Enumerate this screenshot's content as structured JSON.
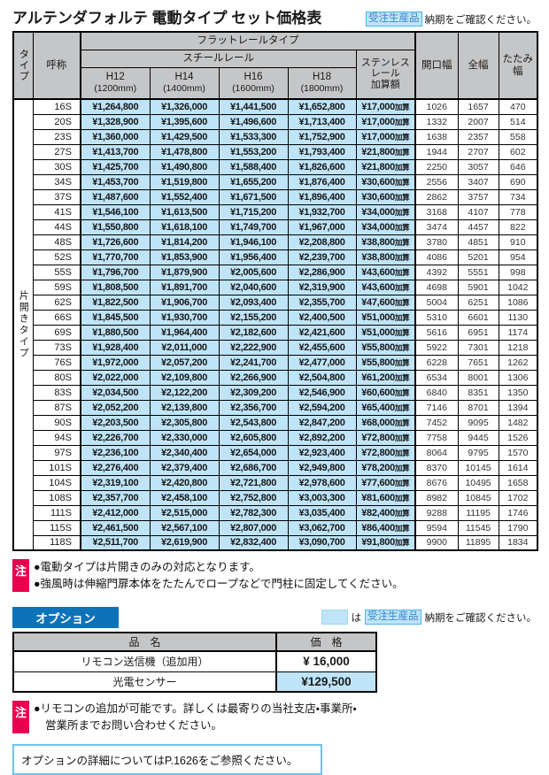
{
  "page": {
    "title": "アルテンダフォルテ 電動タイプ セット価格表",
    "order_badge": "受注生産品",
    "order_note": "納期をご確認ください。"
  },
  "price_table": {
    "headers": {
      "type": "タイプ",
      "name": "呼称",
      "flat_rail": "フラットレールタイプ",
      "steel_rail": "スチールレール",
      "h_cols": [
        {
          "label": "H12",
          "sub": "(1200mm)"
        },
        {
          "label": "H14",
          "sub": "(1400mm)"
        },
        {
          "label": "H16",
          "sub": "(1600mm)"
        },
        {
          "label": "H18",
          "sub": "(1800mm)"
        }
      ],
      "stainless_lines": [
        "ステンレス",
        "レール",
        "加算額"
      ],
      "opening_width": "開口幅",
      "total_width": "全幅",
      "folded_width": "たたみ幅"
    },
    "type_label": "片開きタイプ",
    "kasan_suffix": "加算",
    "rows": [
      [
        "16S",
        "¥1,264,800",
        "¥1,326,000",
        "¥1,441,500",
        "¥1,652,800",
        "¥17,000",
        "1026",
        "1657",
        "470"
      ],
      [
        "20S",
        "¥1,328,900",
        "¥1,395,600",
        "¥1,496,600",
        "¥1,713,400",
        "¥17,000",
        "1332",
        "2007",
        "514"
      ],
      [
        "23S",
        "¥1,360,000",
        "¥1,429,500",
        "¥1,533,300",
        "¥1,752,900",
        "¥17,000",
        "1638",
        "2357",
        "558"
      ],
      [
        "27S",
        "¥1,413,700",
        "¥1,478,800",
        "¥1,553,200",
        "¥1,793,400",
        "¥21,800",
        "1944",
        "2707",
        "602"
      ],
      [
        "30S",
        "¥1,425,700",
        "¥1,490,800",
        "¥1,588,400",
        "¥1,826,600",
        "¥21,800",
        "2250",
        "3057",
        "646"
      ],
      [
        "34S",
        "¥1,453,700",
        "¥1,519,800",
        "¥1,655,200",
        "¥1,876,400",
        "¥30,600",
        "2556",
        "3407",
        "690"
      ],
      [
        "37S",
        "¥1,487,600",
        "¥1,552,400",
        "¥1,671,500",
        "¥1,896,400",
        "¥30,600",
        "2862",
        "3757",
        "734"
      ],
      [
        "41S",
        "¥1,546,100",
        "¥1,613,500",
        "¥1,715,200",
        "¥1,932,700",
        "¥34,000",
        "3168",
        "4107",
        "778"
      ],
      [
        "44S",
        "¥1,550,800",
        "¥1,618,100",
        "¥1,749,700",
        "¥1,967,000",
        "¥34,000",
        "3474",
        "4457",
        "822"
      ],
      [
        "48S",
        "¥1,726,600",
        "¥1,814,200",
        "¥1,946,100",
        "¥2,208,800",
        "¥38,800",
        "3780",
        "4851",
        "910"
      ],
      [
        "52S",
        "¥1,770,700",
        "¥1,853,900",
        "¥1,956,400",
        "¥2,239,700",
        "¥38,800",
        "4086",
        "5201",
        "954"
      ],
      [
        "55S",
        "¥1,796,700",
        "¥1,879,900",
        "¥2,005,600",
        "¥2,286,900",
        "¥43,600",
        "4392",
        "5551",
        "998"
      ],
      [
        "59S",
        "¥1,808,500",
        "¥1,891,700",
        "¥2,040,600",
        "¥2,319,900",
        "¥43,600",
        "4698",
        "5901",
        "1042"
      ],
      [
        "62S",
        "¥1,822,500",
        "¥1,906,700",
        "¥2,093,400",
        "¥2,355,700",
        "¥47,600",
        "5004",
        "6251",
        "1086"
      ],
      [
        "66S",
        "¥1,845,500",
        "¥1,930,700",
        "¥2,155,200",
        "¥2,400,500",
        "¥51,000",
        "5310",
        "6601",
        "1130"
      ],
      [
        "69S",
        "¥1,880,500",
        "¥1,964,400",
        "¥2,182,600",
        "¥2,421,600",
        "¥51,000",
        "5616",
        "6951",
        "1174"
      ],
      [
        "73S",
        "¥1,928,400",
        "¥2,011,000",
        "¥2,222,900",
        "¥2,455,600",
        "¥55,800",
        "5922",
        "7301",
        "1218"
      ],
      [
        "76S",
        "¥1,972,000",
        "¥2,057,200",
        "¥2,241,700",
        "¥2,477,000",
        "¥55,800",
        "6228",
        "7651",
        "1262"
      ],
      [
        "80S",
        "¥2,022,000",
        "¥2,109,800",
        "¥2,266,900",
        "¥2,504,800",
        "¥61,200",
        "6534",
        "8001",
        "1306"
      ],
      [
        "83S",
        "¥2,034,500",
        "¥2,122,200",
        "¥2,309,200",
        "¥2,546,900",
        "¥60,600",
        "6840",
        "8351",
        "1350"
      ],
      [
        "87S",
        "¥2,052,200",
        "¥2,139,800",
        "¥2,356,700",
        "¥2,594,200",
        "¥65,400",
        "7146",
        "8701",
        "1394"
      ],
      [
        "90S",
        "¥2,203,500",
        "¥2,305,800",
        "¥2,543,800",
        "¥2,847,200",
        "¥68,000",
        "7452",
        "9095",
        "1482"
      ],
      [
        "94S",
        "¥2,226,700",
        "¥2,330,000",
        "¥2,605,800",
        "¥2,892,200",
        "¥72,800",
        "7758",
        "9445",
        "1526"
      ],
      [
        "97S",
        "¥2,236,100",
        "¥2,340,400",
        "¥2,654,000",
        "¥2,923,400",
        "¥72,800",
        "8064",
        "9795",
        "1570"
      ],
      [
        "101S",
        "¥2,276,400",
        "¥2,379,400",
        "¥2,686,700",
        "¥2,949,800",
        "¥78,200",
        "8370",
        "10145",
        "1614"
      ],
      [
        "104S",
        "¥2,319,100",
        "¥2,420,800",
        "¥2,721,800",
        "¥2,978,600",
        "¥77,600",
        "8676",
        "10495",
        "1658"
      ],
      [
        "108S",
        "¥2,357,700",
        "¥2,458,100",
        "¥2,752,800",
        "¥3,003,300",
        "¥81,600",
        "8982",
        "10845",
        "1702"
      ],
      [
        "111S",
        "¥2,412,000",
        "¥2,515,000",
        "¥2,782,300",
        "¥3,035,400",
        "¥82,400",
        "9288",
        "11195",
        "1746"
      ],
      [
        "115S",
        "¥2,461,500",
        "¥2,567,100",
        "¥2,807,000",
        "¥3,062,700",
        "¥86,400",
        "9594",
        "11545",
        "1790"
      ],
      [
        "118S",
        "¥2,511,700",
        "¥2,619,900",
        "¥2,832,400",
        "¥3,090,700",
        "¥91,800",
        "9900",
        "11895",
        "1834"
      ]
    ]
  },
  "notes1": {
    "badge": "注",
    "lines": [
      "●電動タイプは片開きのみの対応となります。",
      "●強風時は伸縮門扉本体をたたんでロープなどで門柱に固定してください。"
    ]
  },
  "options": {
    "title": "オプション",
    "legend": {
      "particle": "は",
      "badge": "受注生産品",
      "text": "納期をご確認ください。"
    },
    "table": {
      "name_header": "品　名",
      "price_header": "価　格",
      "rows": [
        {
          "name": "リモコン送信機（追加用）",
          "price": "¥ 16,000",
          "highlight": false
        },
        {
          "name": "光電センサー",
          "price": "¥129,500",
          "highlight": true
        }
      ]
    }
  },
  "notes2": {
    "badge": "注",
    "lines": [
      "●リモコンの追加が可能です。詳しくは最寄りの当社支店・事業所・",
      "営業所までお問い合わせください。"
    ]
  },
  "footer_box": "オプションの詳細についてはP.1626をご参照ください。",
  "colors": {
    "blue-light": "#bfe4f8",
    "header-gray": "#c5c6c8",
    "note-red": "#e6004e",
    "option-blue": "#0d73b9",
    "badge-border": "#45b6e8",
    "badge-text": "#3b87c8",
    "box-border": "#6cc4ee"
  }
}
